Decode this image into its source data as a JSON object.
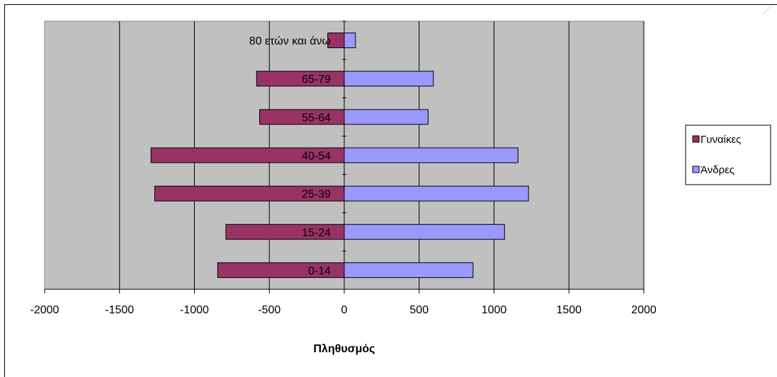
{
  "chart_data": {
    "type": "bar",
    "orientation": "horizontal",
    "categories": [
      "0-14",
      "15-24",
      "25-39",
      "40-54",
      "55-64",
      "65-79",
      "80 ετών και άνω"
    ],
    "series": [
      {
        "name": "Γυναίκες",
        "values": [
          -845,
          -790,
          -1265,
          -1290,
          -565,
          -585,
          -110
        ],
        "color": "#993366"
      },
      {
        "name": "Άνδρες",
        "values": [
          860,
          1070,
          1230,
          1160,
          560,
          595,
          75
        ],
        "color": "#9999ff"
      }
    ],
    "xlabel": "Πληθυσμός",
    "ylabel": "",
    "xlim": [
      -2000,
      2000
    ],
    "xticks": [
      -2000,
      -1500,
      -1000,
      -500,
      0,
      500,
      1000,
      1500,
      2000
    ],
    "grid": "vertical",
    "plot_background": "#c0c0c0",
    "legend_position": "right"
  }
}
